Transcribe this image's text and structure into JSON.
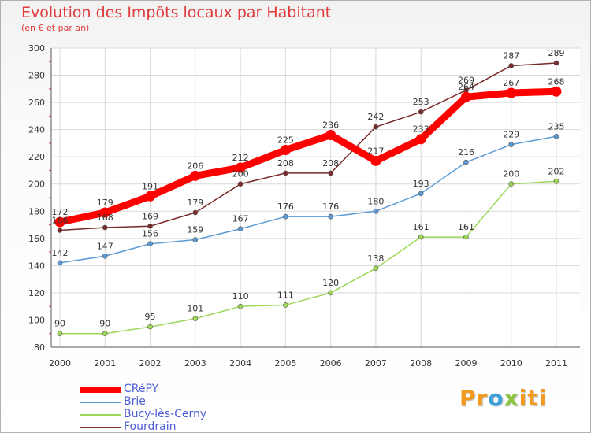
{
  "chart_data": {
    "type": "line",
    "title": "Evolution des Impôts locaux par Habitant",
    "subtitle": "(en € et par an)",
    "categories": [
      "2000",
      "2001",
      "2002",
      "2003",
      "2004",
      "2005",
      "2006",
      "2007",
      "2008",
      "2009",
      "2010",
      "2011"
    ],
    "ylim": [
      80,
      300
    ],
    "yticks": [
      80,
      100,
      120,
      140,
      160,
      180,
      200,
      220,
      240,
      260,
      280,
      300
    ],
    "grid": true,
    "legend_position": "bottom-left",
    "series": [
      {
        "name": "CRéPY",
        "color": "#ff0000",
        "emphasis": true,
        "values": [
          172,
          179,
          191,
          206,
          212,
          225,
          236,
          217,
          233,
          264,
          267,
          268
        ]
      },
      {
        "name": "Brie",
        "color": "#5b9bd5",
        "values": [
          142,
          147,
          156,
          159,
          167,
          176,
          176,
          180,
          193,
          216,
          229,
          235
        ]
      },
      {
        "name": "Bucy-lès-Cerny",
        "color": "#9ed85a",
        "values": [
          90,
          90,
          95,
          101,
          110,
          111,
          120,
          138,
          161,
          161,
          200,
          202
        ]
      },
      {
        "name": "Fourdrain",
        "color": "#7a2a2a",
        "values": [
          166,
          168,
          169,
          179,
          200,
          208,
          208,
          242,
          253,
          269,
          287,
          289
        ]
      }
    ]
  },
  "logo": {
    "parts": [
      "Pr",
      "o",
      "x",
      "iti"
    ],
    "colors": [
      "#f39a1e",
      "#3aa0dc",
      "#8cc63f",
      "#f39a1e"
    ]
  }
}
